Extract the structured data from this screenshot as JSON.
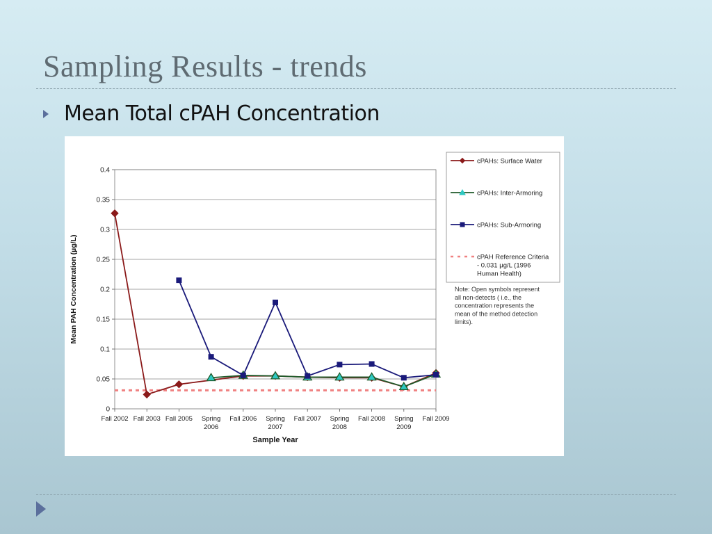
{
  "slide": {
    "title": "Sampling Results - trends",
    "bullet": "Mean Total cPAH Concentration"
  },
  "chart_data": {
    "type": "line",
    "title": "",
    "xlabel": "Sample Year",
    "ylabel": "Mean  PAH Concentration (µg/L)",
    "ylim": [
      0,
      0.4
    ],
    "yticks": [
      0,
      0.05,
      0.1,
      0.15,
      0.2,
      0.25,
      0.3,
      0.35,
      0.4
    ],
    "ytick_labels": [
      "0",
      "0.05",
      "0.1",
      "0.15",
      "0.2",
      "0.25",
      "0.3",
      "0.35",
      "0.4"
    ],
    "categories": [
      "Fall 2002",
      "Fall 2003",
      "Fall 2005",
      "Spring 2006",
      "Fall 2006",
      "Spring 2007",
      "Fall 2007",
      "Spring 2008",
      "Fall 2008",
      "Spring 2009",
      "Fall 2009"
    ],
    "category_lines": [
      [
        "Fall 2002"
      ],
      [
        "Fall 2003"
      ],
      [
        "Fall 2005"
      ],
      [
        "Spring",
        "2006"
      ],
      [
        "Fall 2006"
      ],
      [
        "Spring",
        "2007"
      ],
      [
        "Fall 2007"
      ],
      [
        "Spring",
        "2008"
      ],
      [
        "Fall 2008"
      ],
      [
        "Spring",
        "2009"
      ],
      [
        "Fall 2009"
      ]
    ],
    "grid": true,
    "legend_position": "right",
    "series": [
      {
        "name": "cPAHs: Surface Water",
        "color": "#8b1a1a",
        "marker": "diamond",
        "values": [
          0.327,
          0.024,
          0.041,
          null,
          0.055,
          0.055,
          0.053,
          0.052,
          0.052,
          0.037,
          0.06
        ]
      },
      {
        "name": "cPAHs: Inter-Armoring",
        "color": "#1f5a2a",
        "marker": "triangle",
        "marker_fill": "#2ec9c2",
        "values": [
          null,
          null,
          null,
          0.052,
          0.056,
          0.055,
          0.053,
          0.053,
          0.053,
          0.037,
          0.058
        ]
      },
      {
        "name": "cPAHs: Sub-Armoring",
        "color": "#1a1a7a",
        "marker": "square",
        "values": [
          null,
          null,
          0.215,
          0.087,
          0.056,
          0.178,
          0.055,
          0.074,
          0.075,
          0.052,
          0.057
        ]
      }
    ],
    "reference": {
      "name_lines": [
        "cPAH Reference Criteria",
        "- 0.031 µg/L (1996",
        "Human Health)"
      ],
      "value": 0.031,
      "color": "#f08080",
      "style": "dashed"
    },
    "note_lines": [
      "Note: Open symbols represent",
      "all non-detects ( i.e., the",
      "concentration represents the",
      "mean of the method detection",
      "limits)."
    ]
  }
}
